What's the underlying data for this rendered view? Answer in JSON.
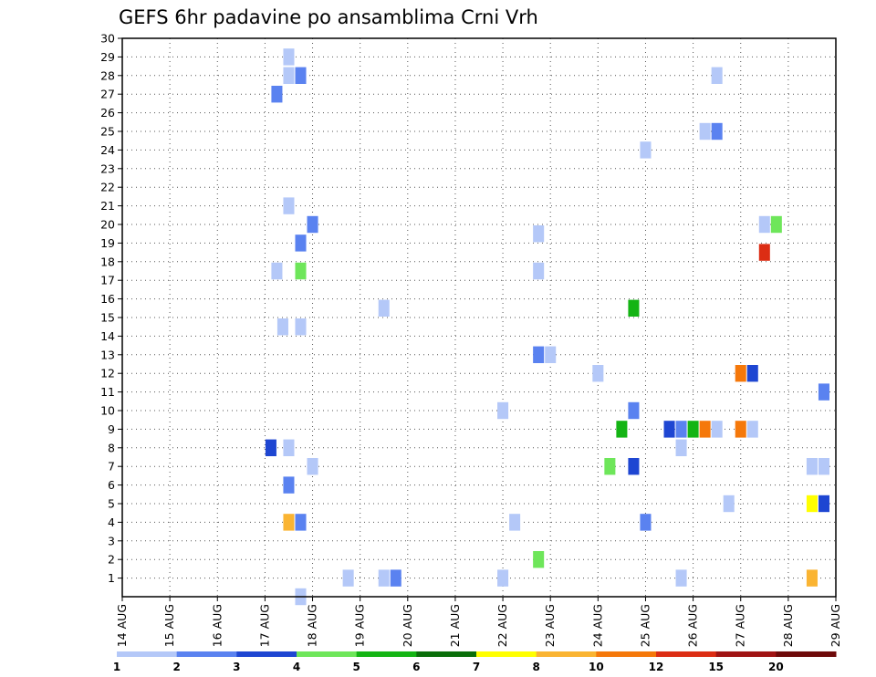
{
  "chart_data": {
    "type": "heatmap",
    "title": "GEFS 6hr padavine po ansamblima Crni Vrh",
    "xlabel": "",
    "ylabel": "",
    "x_tick_labels": [
      "14 AUG",
      "15 AUG",
      "16 AUG",
      "17 AUG",
      "18 AUG",
      "19 AUG",
      "20 AUG",
      "21 AUG",
      "22 AUG",
      "23 AUG",
      "24 AUG",
      "25 AUG",
      "26 AUG",
      "27 AUG",
      "28 AUG",
      "29 AUG"
    ],
    "x_range_days": [
      0,
      15
    ],
    "time_step_hours": 6,
    "y_tick_labels": [
      "1",
      "2",
      "3",
      "4",
      "5",
      "6",
      "7",
      "8",
      "9",
      "10",
      "11",
      "12",
      "13",
      "14",
      "15",
      "16",
      "17",
      "18",
      "19",
      "20",
      "21",
      "22",
      "23",
      "24",
      "25",
      "26",
      "27",
      "28",
      "29",
      "30"
    ],
    "y_range": [
      0,
      30
    ],
    "grid": true,
    "legend": {
      "placement": "bottom",
      "labels": [
        "1",
        "2",
        "3",
        "4",
        "5",
        "6",
        "7",
        "8",
        "10",
        "12",
        "15",
        "20"
      ],
      "colors": [
        "#b4c8f8",
        "#5a82f0",
        "#1e46d2",
        "#6ee65a",
        "#14b414",
        "#0a6e0a",
        "#ffff00",
        "#fab432",
        "#f5780a",
        "#dc2d14",
        "#a01414",
        "#6e0a0a"
      ]
    },
    "cells": [
      {
        "day": 3.25,
        "member": 27,
        "color": "#5a82f0"
      },
      {
        "day": 3.5,
        "member": 29,
        "color": "#b4c8f8"
      },
      {
        "day": 3.5,
        "member": 28,
        "color": "#b4c8f8"
      },
      {
        "day": 3.75,
        "member": 28,
        "color": "#5a82f0"
      },
      {
        "day": 3.5,
        "member": 21,
        "color": "#b4c8f8"
      },
      {
        "day": 4.0,
        "member": 20,
        "color": "#5a82f0"
      },
      {
        "day": 3.75,
        "member": 19,
        "color": "#5a82f0"
      },
      {
        "day": 3.25,
        "member": 17.5,
        "color": "#b4c8f8"
      },
      {
        "day": 3.75,
        "member": 17.5,
        "color": "#6ee65a"
      },
      {
        "day": 3.375,
        "member": 14.5,
        "color": "#b4c8f8"
      },
      {
        "day": 3.75,
        "member": 14.5,
        "color": "#b4c8f8"
      },
      {
        "day": 3.125,
        "member": 8,
        "color": "#1e46d2"
      },
      {
        "day": 3.5,
        "member": 8,
        "color": "#b4c8f8"
      },
      {
        "day": 4.0,
        "member": 7,
        "color": "#b4c8f8"
      },
      {
        "day": 3.5,
        "member": 6,
        "color": "#5a82f0"
      },
      {
        "day": 3.5,
        "member": 4,
        "color": "#fab432"
      },
      {
        "day": 3.75,
        "member": 4,
        "color": "#5a82f0"
      },
      {
        "day": 3.75,
        "member": 0,
        "color": "#b4c8f8"
      },
      {
        "day": 4.75,
        "member": 1,
        "color": "#b4c8f8"
      },
      {
        "day": 5.5,
        "member": 15.5,
        "color": "#b4c8f8"
      },
      {
        "day": 5.5,
        "member": 1,
        "color": "#b4c8f8"
      },
      {
        "day": 5.75,
        "member": 1,
        "color": "#5a82f0"
      },
      {
        "day": 8.75,
        "member": 19.5,
        "color": "#b4c8f8"
      },
      {
        "day": 8.75,
        "member": 17.5,
        "color": "#b4c8f8"
      },
      {
        "day": 8.75,
        "member": 13,
        "color": "#5a82f0"
      },
      {
        "day": 9.0,
        "member": 13,
        "color": "#b4c8f8"
      },
      {
        "day": 8.0,
        "member": 10,
        "color": "#b4c8f8"
      },
      {
        "day": 8.25,
        "member": 4,
        "color": "#b4c8f8"
      },
      {
        "day": 8.75,
        "member": 2,
        "color": "#6ee65a"
      },
      {
        "day": 8.0,
        "member": 1,
        "color": "#b4c8f8"
      },
      {
        "day": 10.0,
        "member": 12,
        "color": "#b4c8f8"
      },
      {
        "day": 10.5,
        "member": 9,
        "color": "#14b414"
      },
      {
        "day": 10.25,
        "member": 7,
        "color": "#6ee65a"
      },
      {
        "day": 10.75,
        "member": 15.5,
        "color": "#14b414"
      },
      {
        "day": 10.75,
        "member": 10,
        "color": "#5a82f0"
      },
      {
        "day": 10.75,
        "member": 7,
        "color": "#1e46d2"
      },
      {
        "day": 11.0,
        "member": 4,
        "color": "#5a82f0"
      },
      {
        "day": 11.0,
        "member": 24,
        "color": "#b4c8f8"
      },
      {
        "day": 11.5,
        "member": 9,
        "color": "#1e46d2"
      },
      {
        "day": 11.75,
        "member": 9,
        "color": "#5a82f0"
      },
      {
        "day": 11.75,
        "member": 8,
        "color": "#b4c8f8"
      },
      {
        "day": 11.75,
        "member": 1,
        "color": "#b4c8f8"
      },
      {
        "day": 12.25,
        "member": 25,
        "color": "#b4c8f8"
      },
      {
        "day": 12.5,
        "member": 25,
        "color": "#5a82f0"
      },
      {
        "day": 12.5,
        "member": 28,
        "color": "#b4c8f8"
      },
      {
        "day": 12.0,
        "member": 9,
        "color": "#14b414"
      },
      {
        "day": 12.25,
        "member": 9,
        "color": "#f5780a"
      },
      {
        "day": 12.5,
        "member": 9,
        "color": "#b4c8f8"
      },
      {
        "day": 12.75,
        "member": 5,
        "color": "#b4c8f8"
      },
      {
        "day": 13.0,
        "member": 12,
        "color": "#f5780a"
      },
      {
        "day": 13.25,
        "member": 12,
        "color": "#1e46d2"
      },
      {
        "day": 13.0,
        "member": 9,
        "color": "#f5780a"
      },
      {
        "day": 13.25,
        "member": 9,
        "color": "#b4c8f8"
      },
      {
        "day": 13.5,
        "member": 20,
        "color": "#b4c8f8"
      },
      {
        "day": 13.75,
        "member": 20,
        "color": "#6ee65a"
      },
      {
        "day": 13.5,
        "member": 18.5,
        "color": "#dc2d14"
      },
      {
        "day": 14.75,
        "member": 11,
        "color": "#5a82f0"
      },
      {
        "day": 14.5,
        "member": 7,
        "color": "#b4c8f8"
      },
      {
        "day": 14.75,
        "member": 7,
        "color": "#b4c8f8"
      },
      {
        "day": 14.5,
        "member": 5,
        "color": "#ffff00"
      },
      {
        "day": 14.75,
        "member": 5,
        "color": "#1e46d2"
      },
      {
        "day": 14.5,
        "member": 1,
        "color": "#fab432"
      }
    ]
  }
}
